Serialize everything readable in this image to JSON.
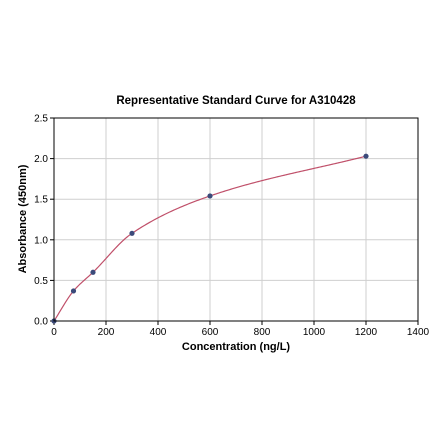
{
  "chart_data": {
    "type": "scatter",
    "title": "Representative Standard Curve for A310428",
    "xlabel": "Concentration (ng/L)",
    "ylabel": "Absorbance (450nm)",
    "xlim": [
      0,
      1400
    ],
    "ylim": [
      0,
      2.5
    ],
    "x_ticks": [
      0,
      200,
      400,
      600,
      800,
      1000,
      1200,
      1400
    ],
    "y_ticks": [
      0.0,
      0.5,
      1.0,
      1.5,
      2.0,
      2.5
    ],
    "x_tick_labels": [
      "0",
      "200",
      "400",
      "600",
      "800",
      "1000",
      "1200",
      "1400"
    ],
    "y_tick_labels": [
      "0.0",
      "0.5",
      "1.0",
      "1.5",
      "2.0",
      "2.5"
    ],
    "grid": true,
    "legend": "none",
    "series": [
      {
        "marker_color": "#3b4a7a",
        "x": [
          0,
          75,
          150,
          300,
          600,
          1200
        ],
        "y": [
          0.0,
          0.37,
          0.6,
          1.08,
          1.54,
          2.03
        ]
      }
    ],
    "fit_curve": {
      "color": "#c0506a",
      "x_range": [
        0,
        1200
      ]
    },
    "colors": {
      "grid": "#cfcfcf",
      "axis": "#000000",
      "point": "#3b4a7a",
      "curve": "#c0506a"
    }
  }
}
